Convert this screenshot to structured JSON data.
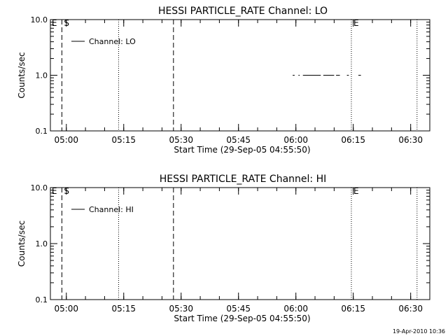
{
  "chart_data": [
    {
      "type": "line",
      "title": "HESSI PARTICLE_RATE Channel: LO",
      "xlabel": "Start Time (29-Sep-05 04:55:50)",
      "ylabel": "Counts/sec",
      "yscale": "log",
      "ylim": [
        0.1,
        10.0
      ],
      "xlim": [
        "04:55:50",
        "06:35:00"
      ],
      "grid": false,
      "legend_position": "top-left",
      "x_ticks": [
        "05:00",
        "05:15",
        "05:30",
        "05:45",
        "06:00",
        "06:15",
        "06:30"
      ],
      "y_ticks": [
        "10.0",
        "1.0",
        "0.1"
      ],
      "series": [
        {
          "name": "Channel: LO",
          "segments": [
            {
              "x": [
                "05:59:10",
                "05:59:40"
              ],
              "y": [
                1.0,
                1.0
              ]
            },
            {
              "x": [
                "06:00:40",
                "06:01:00"
              ],
              "y": [
                1.0,
                1.0
              ]
            },
            {
              "x": [
                "06:01:50",
                "06:06:30"
              ],
              "y": [
                1.0,
                1.0
              ]
            },
            {
              "x": [
                "06:07:10",
                "06:10:00"
              ],
              "y": [
                1.0,
                1.0
              ]
            },
            {
              "x": [
                "06:10:30",
                "06:11:30"
              ],
              "y": [
                1.0,
                1.0
              ]
            },
            {
              "x": [
                "06:13:20",
                "06:13:50"
              ],
              "y": [
                1.0,
                1.0
              ]
            },
            {
              "x": [
                "06:16:20",
                "06:17:00"
              ],
              "y": [
                1.0,
                1.0
              ]
            }
          ]
        }
      ],
      "markers": [
        {
          "label": "E",
          "x": "04:56:10",
          "style": "none"
        },
        {
          "label": "S",
          "x": "04:58:50",
          "style": "dashed"
        },
        {
          "label": "",
          "x": "05:13:40",
          "style": "dotted"
        },
        {
          "label": "",
          "x": "05:28:00",
          "style": "dashed"
        },
        {
          "label": "E",
          "x": "06:14:30",
          "style": "dotted"
        },
        {
          "label": "",
          "x": "06:31:40",
          "style": "dotted"
        }
      ]
    },
    {
      "type": "line",
      "title": "HESSI PARTICLE_RATE Channel: HI",
      "xlabel": "Start Time (29-Sep-05 04:55:50)",
      "ylabel": "Counts/sec",
      "yscale": "log",
      "ylim": [
        0.1,
        10.0
      ],
      "xlim": [
        "04:55:50",
        "06:35:00"
      ],
      "grid": false,
      "legend_position": "top-left",
      "x_ticks": [
        "05:00",
        "05:15",
        "05:30",
        "05:45",
        "06:00",
        "06:15",
        "06:30"
      ],
      "y_ticks": [
        "10.0",
        "1.0",
        "0.1"
      ],
      "series": [
        {
          "name": "Channel: HI",
          "segments": []
        }
      ],
      "markers": [
        {
          "label": "E",
          "x": "04:56:10",
          "style": "none"
        },
        {
          "label": "S",
          "x": "04:58:50",
          "style": "dashed"
        },
        {
          "label": "",
          "x": "05:13:40",
          "style": "dotted"
        },
        {
          "label": "",
          "x": "05:28:00",
          "style": "dashed"
        },
        {
          "label": "E",
          "x": "06:14:30",
          "style": "dotted"
        },
        {
          "label": "",
          "x": "06:31:40",
          "style": "dotted"
        }
      ]
    }
  ],
  "footer": {
    "timestamp": "19-Apr-2010 10:36"
  }
}
